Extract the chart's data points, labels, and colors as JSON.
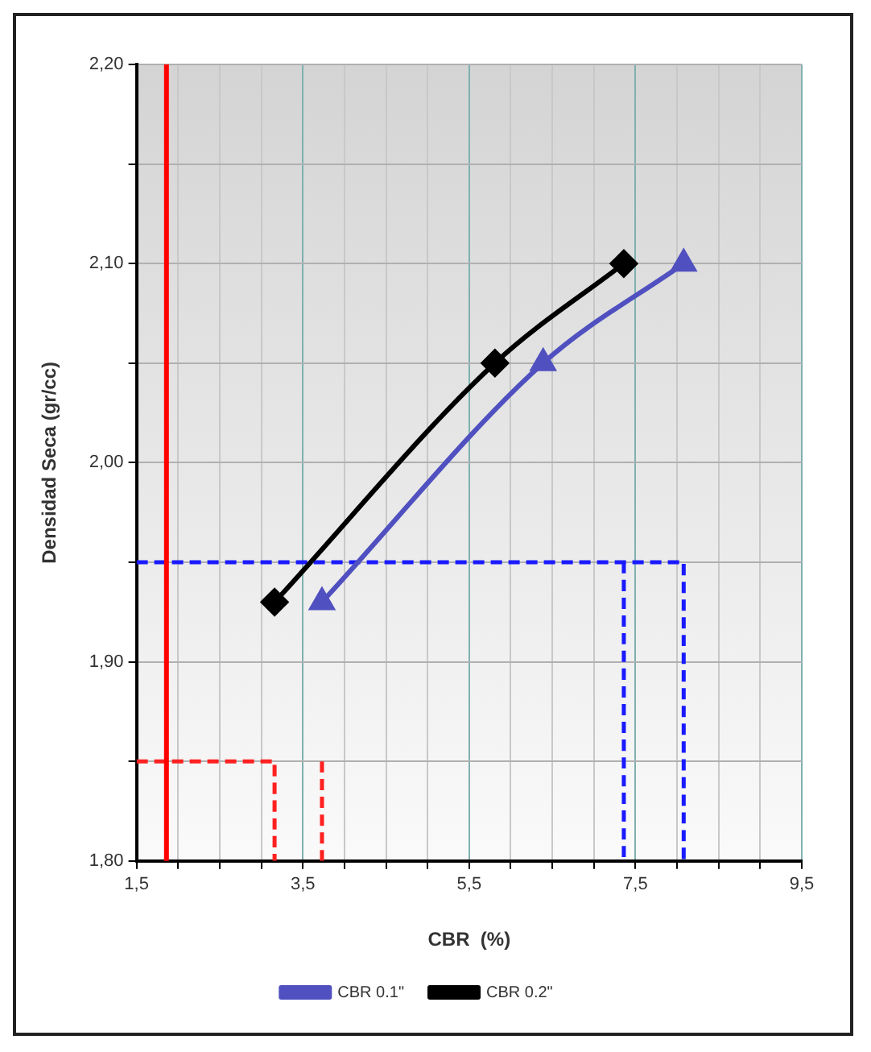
{
  "chart_data": {
    "type": "line",
    "xlabel": "CBR  (%)",
    "ylabel": "Densidad Seca (gr/cc)",
    "xlim": [
      1.5,
      9.5
    ],
    "ylim": [
      1.8,
      2.2
    ],
    "xticks": [
      {
        "value": 1.5,
        "label": "1,5"
      },
      {
        "value": 2,
        "label": null
      },
      {
        "value": 2.5,
        "label": null
      },
      {
        "value": 3,
        "label": null
      },
      {
        "value": 3.5,
        "label": "3,5"
      },
      {
        "value": 4,
        "label": null
      },
      {
        "value": 4.5,
        "label": null
      },
      {
        "value": 5,
        "label": null
      },
      {
        "value": 5.5,
        "label": "5,5"
      },
      {
        "value": 6,
        "label": null
      },
      {
        "value": 6.5,
        "label": null
      },
      {
        "value": 7,
        "label": null
      },
      {
        "value": 7.5,
        "label": "7,5"
      },
      {
        "value": 8,
        "label": null
      },
      {
        "value": 8.5,
        "label": null
      },
      {
        "value": 9,
        "label": null
      },
      {
        "value": 9.5,
        "label": "9,5"
      }
    ],
    "yticks": [
      {
        "value": 1.8,
        "label": "1,80"
      },
      {
        "value": 1.85,
        "label": null
      },
      {
        "value": 1.9,
        "label": "1,90"
      },
      {
        "value": 1.95,
        "label": null
      },
      {
        "value": 2.0,
        "label": "2,00"
      },
      {
        "value": 2.05,
        "label": null
      },
      {
        "value": 2.1,
        "label": "2,10"
      },
      {
        "value": 2.15,
        "label": null
      },
      {
        "value": 2.2,
        "label": "2,20"
      }
    ],
    "grid": true,
    "legend": "bottom",
    "series": [
      {
        "name": "CBR 0.1\"",
        "color": "#5050c0",
        "marker": "triangle",
        "x": [
          3.73,
          6.39,
          8.08
        ],
        "values": [
          1.93,
          2.05,
          2.1
        ]
      },
      {
        "name": "CBR 0.2\"",
        "color": "#000000",
        "marker": "diamond",
        "x": [
          3.16,
          5.81,
          7.36
        ],
        "values": [
          1.93,
          2.05,
          2.1
        ]
      },
      {
        "color": "#ff2020",
        "marker": "none",
        "line_style": "dashed",
        "x": [
          1.5,
          3.16,
          3.16
        ],
        "values": [
          1.85,
          1.85,
          1.8
        ]
      },
      {
        "color": "#ff2020",
        "marker": "none",
        "line_style": "dashed",
        "x": [
          3.73,
          3.73
        ],
        "values": [
          1.85,
          1.8
        ]
      },
      {
        "color": "#1a1aff",
        "marker": "none",
        "line_style": "dashed",
        "x": [
          1.5,
          8.08,
          8.08
        ],
        "values": [
          1.95,
          1.95,
          1.8
        ]
      },
      {
        "color": "#1a1aff",
        "marker": "none",
        "line_style": "dashed",
        "x": [
          7.36,
          7.36
        ],
        "values": [
          1.95,
          1.8
        ]
      }
    ],
    "ref_lines": [
      {
        "axis": "x",
        "value": 1.86,
        "color": "#ff0000"
      }
    ]
  }
}
